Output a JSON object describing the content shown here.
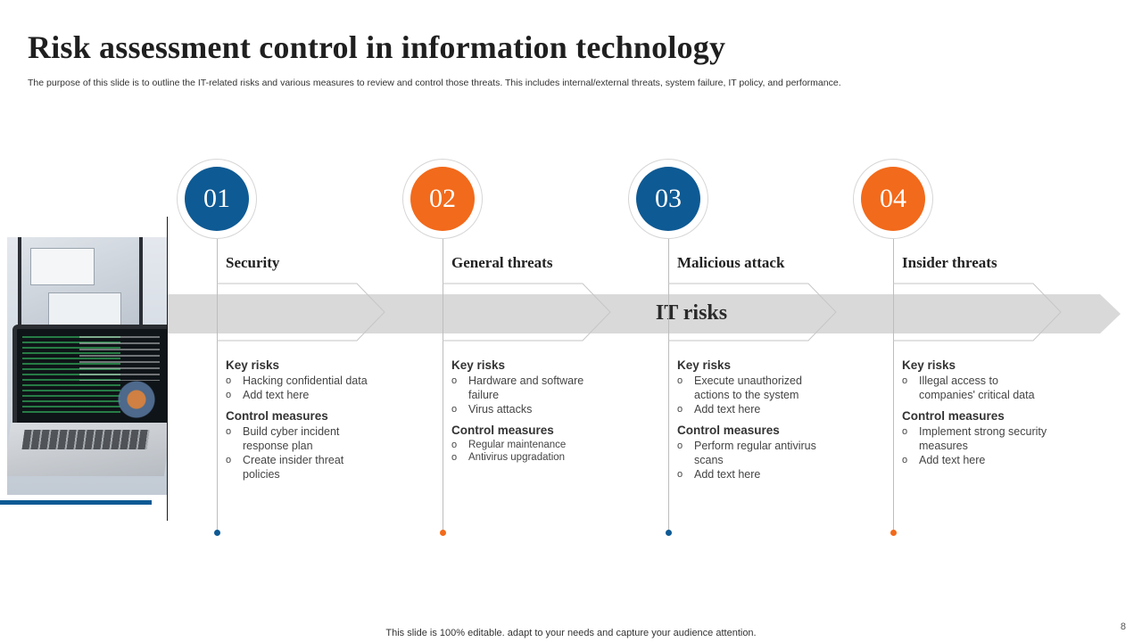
{
  "title": "Risk assessment control in information technology",
  "subtitle": "The purpose of this slide is to outline the IT-related risks and various measures to review and control those threats. This includes internal/external threats, system failure, IT policy, and performance.",
  "band_label": "IT risks",
  "colors": {
    "blue": "#0e5a94",
    "orange": "#f26a1b",
    "band": "#d9d9d9"
  },
  "steps": [
    {
      "number": "01",
      "title": "Security",
      "color": "blue",
      "key_risks_label": "Key risks",
      "key_risks": [
        "Hacking confidential data",
        "Add text here"
      ],
      "control_label": "Control measures",
      "controls": [
        "Build cyber incident response plan",
        "Create insider threat policies"
      ]
    },
    {
      "number": "02",
      "title": "General threats",
      "color": "orange",
      "key_risks_label": "Key risks",
      "key_risks": [
        "Hardware and software failure",
        "Virus attacks"
      ],
      "control_label": "Control measures",
      "controls": [
        "Regular maintenance",
        "Antivirus upgradation"
      ]
    },
    {
      "number": "03",
      "title": "Malicious attack",
      "color": "blue",
      "key_risks_label": "Key risks",
      "key_risks": [
        "Execute unauthorized actions to the system",
        "Add text here"
      ],
      "control_label": "Control measures",
      "controls": [
        "Perform regular antivirus scans",
        "Add text here"
      ]
    },
    {
      "number": "04",
      "title": "Insider threats",
      "color": "orange",
      "key_risks_label": "Key risks",
      "key_risks": [
        "Illegal access to companies' critical data"
      ],
      "control_label": "Control measures",
      "controls": [
        "Implement strong security measures",
        "Add text here"
      ]
    }
  ],
  "footer": "This slide is 100% editable. adapt to your needs and capture your audience attention.",
  "page_number": "8"
}
